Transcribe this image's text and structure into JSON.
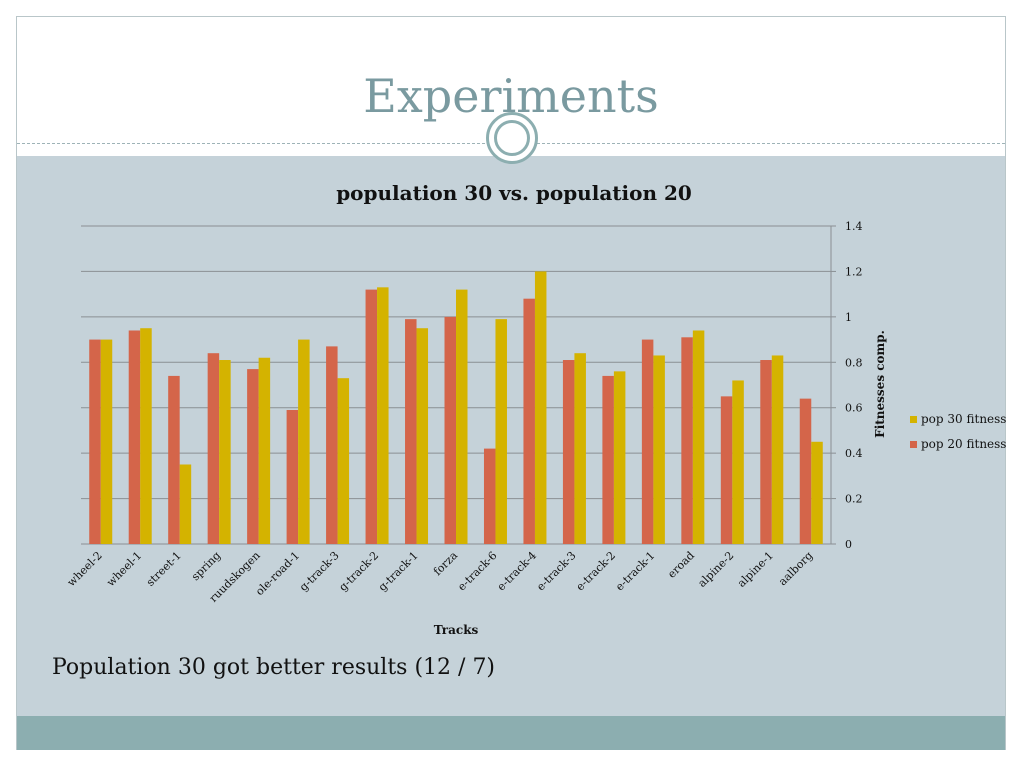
{
  "slide": {
    "title": "Experiments",
    "caption": "Population 30 got better results (12 / 7)"
  },
  "colors": {
    "pop20": "#d4654a",
    "pop30": "#d4b300",
    "content_bg": "#c5d2d9",
    "accent": "#8caeb0",
    "title_color": "#7a9aa0"
  },
  "chart_data": {
    "type": "bar",
    "title": "population 30 vs. population 20",
    "xlabel": "Tracks",
    "ylabel": "Fitnesses comp.",
    "ylim": [
      0,
      1.4
    ],
    "yticks": [
      "0",
      "0.2",
      "0.4",
      "0.6",
      "0.8",
      "1",
      "1.2",
      "1.4"
    ],
    "grid": true,
    "legend_position": "right",
    "categories": [
      "wheel-2",
      "wheel-1",
      "street-1",
      "spring",
      "ruudskogen",
      "ole-road-1",
      "g-track-3",
      "g-track-2",
      "g-track-1",
      "forza",
      "e-track-6",
      "e-track-4",
      "e-track-3",
      "e-track-2",
      "e-track-1",
      "eroad",
      "alpine-2",
      "alpine-1",
      "aalborg"
    ],
    "series": [
      {
        "name": "pop 20 fitness",
        "values": [
          0.9,
          0.94,
          0.74,
          0.84,
          0.77,
          0.59,
          0.87,
          1.12,
          0.99,
          1.0,
          0.42,
          1.08,
          0.81,
          0.74,
          0.9,
          0.91,
          0.65,
          0.81,
          0.64
        ]
      },
      {
        "name": "pop 30 fitness",
        "values": [
          0.9,
          0.95,
          0.35,
          0.81,
          0.82,
          0.9,
          0.73,
          1.13,
          0.95,
          1.12,
          0.99,
          1.2,
          0.84,
          0.76,
          0.83,
          0.94,
          0.72,
          0.83,
          0.45
        ]
      }
    ],
    "legend": [
      "pop 30 fitness",
      "pop 20 fitness"
    ]
  }
}
